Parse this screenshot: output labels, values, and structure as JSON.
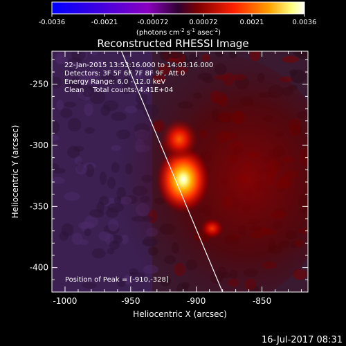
{
  "colorbar": {
    "ticks": [
      "-0.0036",
      "-0.0021",
      "-0.00072",
      "0.00072",
      "0.0021",
      "0.0036"
    ],
    "tick_values": [
      -0.0036,
      -0.0021,
      -0.00072,
      0.00072,
      0.0021,
      0.0036
    ],
    "range": [
      -0.0036,
      0.0036
    ],
    "units_main": "(photons cm",
    "units_exp1": "-2",
    "units_mid": " s",
    "units_exp2": "-1",
    "units_mid2": " asec",
    "units_exp3": "-2",
    "units_end": ")"
  },
  "info": {
    "line1": "22-Jan-2015 13:53:16.000 to 14:03:16.000",
    "line2": "Detectors: 3F 5F 6F 7F 8F 9F, Att 0",
    "line3": "Energy Range: 6.0 - 12.0 keV",
    "line4": "Clean    Total counts: 4.41E+04",
    "peak": "Position of Peak = [-910,-328]"
  },
  "footer": {
    "timestamp": "16-Jul-2017 08:31"
  },
  "chart_data": {
    "type": "heatmap",
    "title": "Reconstructed RHESSI Image",
    "xlabel": "Heliocentric X (arcsec)",
    "ylabel": "Heliocentric Y (arcsec)",
    "xlim": [
      -1010,
      -815
    ],
    "ylim": [
      -420,
      -223
    ],
    "x_ticks": [
      -1000,
      -950,
      -900,
      -850
    ],
    "y_ticks": [
      -250,
      -300,
      -350,
      -400
    ],
    "x_tick_labels": [
      "-1000",
      "-950",
      "-900",
      "-850"
    ],
    "y_tick_labels": [
      "-250",
      "-300",
      "-350",
      "-400"
    ],
    "colormap": [
      "#0000ff",
      "#7a00c8",
      "#400040",
      "#700000",
      "#e00000",
      "#ff9000",
      "#ffff80",
      "#ffffff"
    ],
    "sources": [
      {
        "x": -910,
        "y": -328,
        "peak": 0.0036
      },
      {
        "x": -913,
        "y": -295,
        "peak": 0.0021
      },
      {
        "x": -888,
        "y": -368,
        "peak": 0.0014
      }
    ],
    "limb_line": [
      [
        -957,
        -223
      ],
      [
        -880,
        -420
      ]
    ],
    "peak_position": [
      -910,
      -328
    ]
  }
}
